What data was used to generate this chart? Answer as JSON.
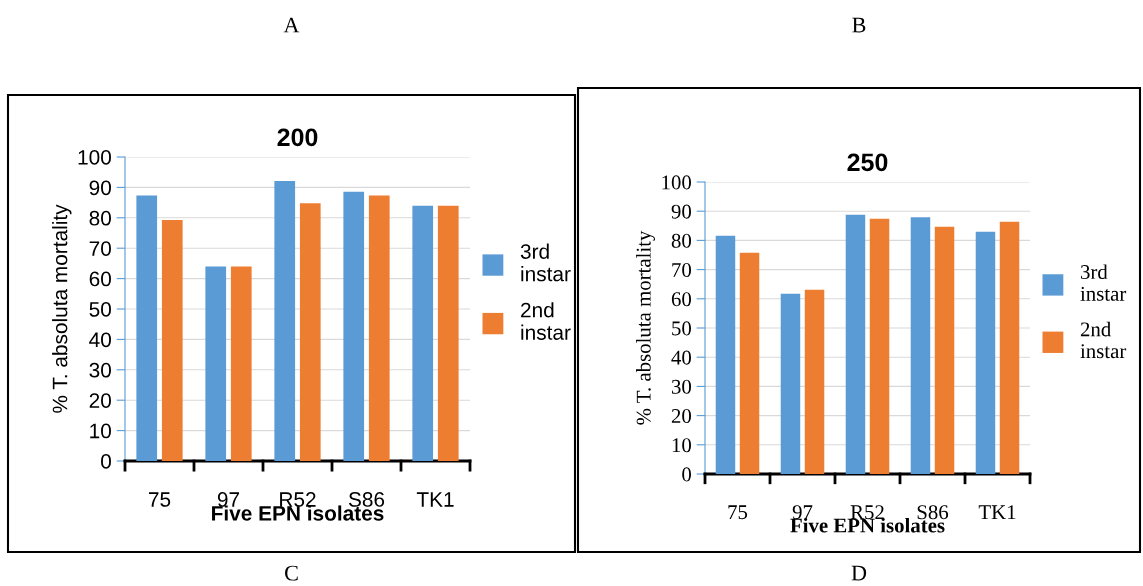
{
  "chart_data": [
    {
      "type": "bar",
      "title": "200",
      "xlabel": "Five EPN isolates",
      "ylabel": "% T. absoluta mortality",
      "categories": [
        "75",
        "97",
        "R52",
        "S86",
        "TK1"
      ],
      "series": [
        {
          "name": "3rd instar",
          "color": "#5b9bd5",
          "values": [
            87.3,
            64,
            92.1,
            88.6,
            84
          ]
        },
        {
          "name": "2nd instar",
          "color": "#ed7d31",
          "values": [
            79.3,
            64,
            84.8,
            87.3,
            84
          ]
        }
      ],
      "ylim": [
        0,
        100
      ],
      "yticks": [
        0,
        10,
        20,
        30,
        40,
        50,
        60,
        70,
        80,
        90,
        100
      ],
      "grid": "y",
      "legend": "right",
      "annotations": [
        "A",
        "C"
      ]
    },
    {
      "type": "bar",
      "title": "250",
      "xlabel": "Five EPN isolates",
      "ylabel": "% T. absoluta mortality",
      "categories": [
        "75",
        "97",
        "R52",
        "S86",
        "TK1"
      ],
      "series": [
        {
          "name": "3rd instar",
          "color": "#5b9bd5",
          "values": [
            81.6,
            61.7,
            88.8,
            87.9,
            83
          ]
        },
        {
          "name": "2nd instar",
          "color": "#ed7d31",
          "values": [
            75.8,
            63.1,
            87.4,
            84.7,
            86.4
          ]
        }
      ],
      "ylim": [
        0,
        100
      ],
      "yticks": [
        0,
        10,
        20,
        30,
        40,
        50,
        60,
        70,
        80,
        90,
        100
      ],
      "grid": "y",
      "legend": "right",
      "annotations": [
        "B",
        "D"
      ]
    }
  ]
}
